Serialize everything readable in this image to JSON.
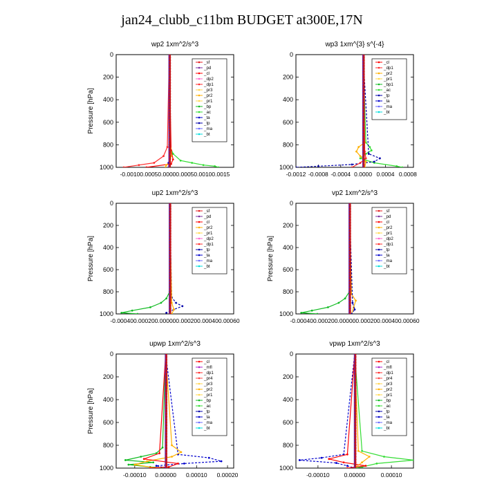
{
  "title": "jan24_clubb_c11bm  BUDGET at300E,17N",
  "colors": {
    "sf": "#e41a1c",
    "pd": "#7b2ea1",
    "cl": "#ff0000",
    "dp2": "#ff66cc",
    "dp1": "#ff2a2a",
    "pr3": "#ffd34d",
    "pr2": "#ffb000",
    "pr1": "#ffd84d",
    "bp": "#11bb22",
    "ac": "#33dd33",
    "ta": "#0000cc",
    "tp": "#0000aa",
    "ma": "#6a6aff",
    "bt": "#00dddd",
    "mfl": "#aa22cc",
    "pr4": "#ff4444",
    "black": "#000000"
  },
  "chart_data": [
    {
      "type": "line",
      "title": "wp2   1xm^2/s^3",
      "ylabel": "Pressure [hPa]",
      "ylim": [
        1000,
        0
      ],
      "yticks": [
        "0",
        "200",
        "400",
        "600",
        "800",
        "1000"
      ],
      "xticks": [
        "-0.00100.00050.00000.00050.00100.0015"
      ],
      "xlim": [
        -0.0014,
        0.0017
      ],
      "legend": [
        "_sf",
        "_pd",
        "_cl",
        "_dp2",
        "_dp1",
        "_pr3",
        "_pr2",
        "_pr1",
        "_bp",
        "_ac",
        "_ta",
        "_tp",
        "_ma",
        "_bt"
      ],
      "legend_keys": [
        "sf",
        "pd",
        "cl",
        "dp2",
        "dp1",
        "pr3",
        "pr2",
        "pr1",
        "bp",
        "ac",
        "ta",
        "tp",
        "ma",
        "bt"
      ],
      "series": [
        {
          "key": "ac",
          "y": [
            0,
            800,
            880,
            940,
            960,
            980,
            990,
            1000
          ],
          "values": [
            0,
            0,
            0.0001,
            0.0003,
            0.0006,
            0.0009,
            0.0012,
            0.0013
          ]
        },
        {
          "key": "dp1",
          "y": [
            0,
            820,
            900,
            960,
            980,
            1000
          ],
          "values": [
            0,
            -5e-05,
            -0.00015,
            -0.0004,
            -0.0008,
            -0.0012
          ]
        },
        {
          "key": "cl",
          "y": [
            0,
            850,
            930,
            970,
            1000
          ],
          "values": [
            0,
            5e-05,
            0.0001,
            5e-05,
            -0.0006
          ]
        },
        {
          "key": "pr2",
          "y": [
            0,
            830,
            900,
            950,
            980,
            1000
          ],
          "values": [
            0,
            3e-05,
            5e-05,
            2e-05,
            -8e-05,
            -0.0001
          ]
        },
        {
          "key": "ta",
          "y": [
            0,
            900,
            960,
            1000
          ],
          "values": [
            0,
            2e-05,
            -2e-05,
            -1e-05
          ]
        },
        {
          "key": "sf",
          "y": [
            0,
            1000
          ],
          "values": [
            0,
            0
          ]
        }
      ]
    },
    {
      "type": "line",
      "title": "wp3   1xm^{3} s^{-4}",
      "ylabel": "",
      "ylim": [
        1000,
        0
      ],
      "yticks": [
        "0",
        "200",
        "400",
        "600",
        "800",
        "1000"
      ],
      "xticks": [
        "-0.0012",
        "-0.0008",
        "-0.0004",
        "0.0000",
        "0.0004",
        "0.0008"
      ],
      "xlim": [
        -0.0012,
        0.0009
      ],
      "legend": [
        "_cl",
        "_dp1",
        "_pr2",
        "_pr1",
        "_bp1",
        "_ac",
        "_tp",
        "_ta",
        "_ma",
        "_bt"
      ],
      "legend_keys": [
        "cl",
        "dp1",
        "pr2",
        "pr1",
        "bp",
        "ac",
        "tp",
        "ta",
        "ma",
        "bt"
      ],
      "series": [
        {
          "key": "ac",
          "y": [
            0,
            780,
            820,
            850,
            880,
            920,
            960,
            990,
            1000
          ],
          "values": [
            0,
            5e-05,
            0.00012,
            0.00015,
            5e-05,
            -5e-05,
            0.0002,
            0.0006,
            0.0007
          ]
        },
        {
          "key": "tp",
          "y": [
            0,
            880,
            920,
            950,
            975,
            990,
            1000
          ],
          "values": [
            0,
            0.0001,
            0.0003,
            0.0002,
            -0.0002,
            -0.0008,
            -0.0012
          ]
        },
        {
          "key": "pr2",
          "y": [
            0,
            780,
            820,
            860,
            900,
            950,
            1000
          ],
          "values": [
            0,
            3e-05,
            -8e-05,
            -0.00012,
            -5e-05,
            5e-05,
            3e-05
          ]
        },
        {
          "key": "dp1",
          "y": [
            0,
            860,
            920,
            960,
            1000
          ],
          "values": [
            0,
            3e-05,
            5e-05,
            -5e-05,
            -0.0002
          ]
        },
        {
          "key": "cl",
          "y": [
            0,
            1000
          ],
          "values": [
            0,
            0
          ]
        }
      ]
    },
    {
      "type": "line",
      "title": "up2   1xm^2/s^3",
      "ylabel": "Pressure [hPa]",
      "ylim": [
        1000,
        0
      ],
      "yticks": [
        "0",
        "200",
        "400",
        "600",
        "800",
        "1000"
      ],
      "xticks": [
        "-0.000400.000200.000000.000200.000400.00060"
      ],
      "xlim": [
        -0.0005,
        0.0006
      ],
      "legend": [
        "_sf",
        "_pd",
        "_cl",
        "_pr2",
        "_pr1",
        "_dp2",
        "_dp1",
        "_tp",
        "_ta",
        "_ma",
        "_bt"
      ],
      "legend_keys": [
        "sf",
        "pd",
        "cl",
        "pr2",
        "pr1",
        "dp2",
        "dp1",
        "tp",
        "ta",
        "ma",
        "bt"
      ],
      "series": [
        {
          "key": "bp",
          "y": [
            0,
            800,
            860,
            900,
            940,
            970,
            990,
            1000
          ],
          "values": [
            0,
            0,
            -3e-05,
            -8e-05,
            -0.00018,
            -0.00035,
            -0.00045,
            -0.0003
          ]
        },
        {
          "key": "tp",
          "y": [
            0,
            850,
            900,
            930,
            960,
            990,
            1000
          ],
          "values": [
            0,
            2e-05,
            6e-05,
            0.00012,
            4e-05,
            -3e-05,
            0
          ]
        },
        {
          "key": "pr2",
          "y": [
            0,
            900,
            960,
            1000
          ],
          "values": [
            0,
            2e-05,
            4e-05,
            2e-05
          ]
        },
        {
          "key": "cl",
          "y": [
            0,
            1000
          ],
          "values": [
            0,
            0
          ]
        }
      ]
    },
    {
      "type": "line",
      "title": "vp2   1xm^2/s^3",
      "ylabel": "Pressure [hPa]",
      "ylim": [
        1000,
        0
      ],
      "yticks": [
        "0",
        "200",
        "400",
        "600",
        "800",
        "1000"
      ],
      "xticks": [
        "-0.000400.000200.000000.000200.000400.00060"
      ],
      "xlim": [
        -0.0005,
        0.0006
      ],
      "legend": [
        "_sf",
        "_pd",
        "_cl",
        "_pr2",
        "_pr1",
        "_dp2",
        "_dp1",
        "_tp",
        "_ta",
        "_ma",
        "_bt"
      ],
      "legend_keys": [
        "sf",
        "pd",
        "cl",
        "pr2",
        "pr1",
        "dp2",
        "dp1",
        "tp",
        "ta",
        "ma",
        "bt"
      ],
      "series": [
        {
          "key": "bp",
          "y": [
            0,
            800,
            860,
            900,
            940,
            970,
            990,
            1000
          ],
          "values": [
            0,
            0,
            -4e-05,
            -0.0001,
            -0.0002,
            -0.00035,
            -0.00045,
            -0.0003
          ]
        },
        {
          "key": "pr2",
          "y": [
            0,
            820,
            880,
            940,
            1000
          ],
          "values": [
            0,
            2e-05,
            6e-05,
            4e-05,
            2e-05
          ]
        },
        {
          "key": "tp",
          "y": [
            0,
            900,
            960,
            1000
          ],
          "values": [
            0,
            3e-05,
            5e-05,
            2e-05
          ]
        },
        {
          "key": "cl",
          "y": [
            0,
            1000
          ],
          "values": [
            0,
            0
          ]
        }
      ]
    },
    {
      "type": "line",
      "title": "upwp   1xm^2/s^3",
      "ylabel": "Pressure [hPa]",
      "ylim": [
        1000,
        0
      ],
      "yticks": [
        "0",
        "200",
        "400",
        "600",
        "800",
        "1000"
      ],
      "xticks": [
        "-0.00010",
        "0.00000",
        "0.00010",
        "0.00020"
      ],
      "xlim": [
        -0.00016,
        0.00022
      ],
      "legend": [
        "_cl",
        "_mfl",
        "_dp1",
        "_pr4",
        "_pr3",
        "_pr2",
        "_pr1",
        "_bp",
        "_ac",
        "_tp",
        "_ta",
        "_ma",
        "_bt"
      ],
      "legend_keys": [
        "cl",
        "mfl",
        "dp1",
        "pr4",
        "pr3",
        "pr2",
        "pr1",
        "bp",
        "ac",
        "tp",
        "ta",
        "ma",
        "bt"
      ],
      "series": [
        {
          "key": "bp",
          "y": [
            0,
            820,
            870,
            900,
            930,
            950,
            970,
            990,
            1000
          ],
          "values": [
            0,
            -1e-05,
            -3e-05,
            -8e-05,
            -0.00013,
            -4e-05,
            -0.00012,
            -5e-05,
            0
          ]
        },
        {
          "key": "ta",
          "y": [
            0,
            880,
            910,
            940,
            960,
            980,
            1000
          ],
          "values": [
            0,
            4e-05,
            0.00014,
            0.00018,
            6e-05,
            -3e-05,
            0
          ]
        },
        {
          "key": "pr2",
          "y": [
            0,
            800,
            860,
            900,
            940,
            970,
            1000
          ],
          "values": [
            0,
            2e-05,
            5e-05,
            2e-05,
            -6e-05,
            -0.0001,
            -3e-05
          ]
        },
        {
          "key": "cl",
          "y": [
            0,
            870,
            920,
            960,
            990,
            1000
          ],
          "values": [
            0,
            -2e-05,
            -7e-05,
            4e-05,
            1e-05,
            -5e-05
          ]
        },
        {
          "key": "pd",
          "y": [
            0,
            1000
          ],
          "values": [
            0,
            0
          ]
        }
      ]
    },
    {
      "type": "line",
      "title": "vpwp   1xm^2/s^3",
      "ylabel": "",
      "ylim": [
        1000,
        0
      ],
      "yticks": [
        "0",
        "200",
        "400",
        "600",
        "800",
        "1000"
      ],
      "xticks": [
        "-0.00010",
        "0.00000",
        "0.00010"
      ],
      "xlim": [
        -0.00016,
        0.00016
      ],
      "legend": [
        "_cl",
        "_mfl",
        "_dp1",
        "_pr4",
        "_pr3",
        "_pr2",
        "_pr1",
        "_bp",
        "_ac",
        "_tp",
        "_ta",
        "_ma",
        "_bt"
      ],
      "legend_keys": [
        "cl",
        "mfl",
        "dp1",
        "pr4",
        "pr3",
        "pr2",
        "pr1",
        "bp",
        "ac",
        "tp",
        "ta",
        "ma",
        "bt"
      ],
      "series": [
        {
          "key": "ac",
          "y": [
            0,
            850,
            900,
            930,
            960,
            990,
            1000
          ],
          "values": [
            0,
            2e-05,
            8e-05,
            0.00016,
            6e-05,
            2e-05,
            0
          ]
        },
        {
          "key": "ta",
          "y": [
            0,
            880,
            910,
            930,
            955,
            980,
            1000
          ],
          "values": [
            0,
            -3e-05,
            -9e-05,
            -0.00015,
            -5e-05,
            -2e-05,
            0
          ]
        },
        {
          "key": "cl",
          "y": [
            0,
            880,
            920,
            950,
            980,
            1000
          ],
          "values": [
            0,
            -2e-05,
            -7e-05,
            -3e-05,
            3e-05,
            -2e-05
          ]
        },
        {
          "key": "pr2",
          "y": [
            0,
            850,
            900,
            950,
            1000
          ],
          "values": [
            0,
            1e-05,
            4e-05,
            2e-05,
            0
          ]
        },
        {
          "key": "mfl",
          "y": [
            0,
            1000
          ],
          "values": [
            0,
            0
          ]
        }
      ]
    }
  ]
}
